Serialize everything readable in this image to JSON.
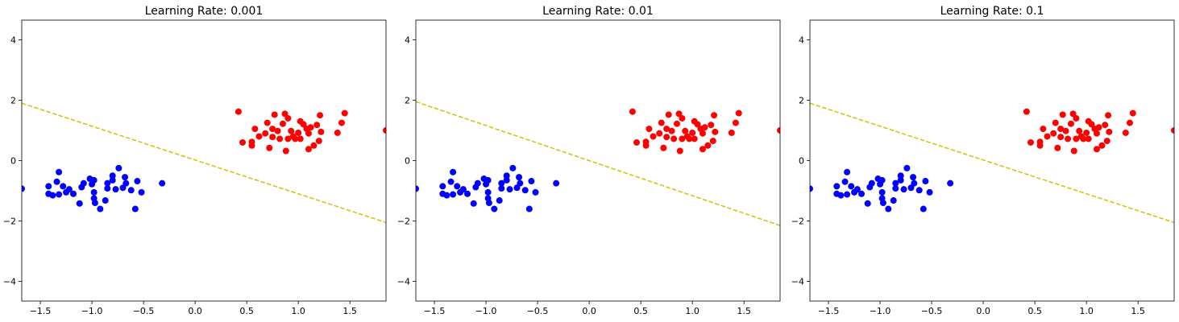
{
  "chart_data": [
    {
      "type": "scatter",
      "title": "Learning Rate: 0.001",
      "xlim": [
        -1.68,
        1.85
      ],
      "ylim": [
        -4.65,
        4.65
      ],
      "xticks": [
        -1.5,
        -1.0,
        -0.5,
        0.0,
        0.5,
        1.0,
        1.5
      ],
      "xtick_labels": [
        "−1.5",
        "−1.0",
        "−0.5",
        "0.0",
        "0.5",
        "1.0",
        "1.5"
      ],
      "yticks": [
        4,
        2,
        0,
        -2,
        -4
      ],
      "ytick_labels": [
        "4",
        "2",
        "0",
        "−2",
        "−4"
      ],
      "grid": false,
      "series": [
        {
          "color": "#0000ff",
          "points": [
            [
              -1.68,
              -0.93
            ],
            [
              -1.42,
              -0.85
            ],
            [
              -1.42,
              -1.1
            ],
            [
              -1.38,
              -1.15
            ],
            [
              -1.34,
              -0.7
            ],
            [
              -1.32,
              -0.38
            ],
            [
              -1.32,
              -1.12
            ],
            [
              -1.28,
              -0.85
            ],
            [
              -1.25,
              -1.05
            ],
            [
              -1.22,
              -0.95
            ],
            [
              -1.18,
              -1.1
            ],
            [
              -1.12,
              -1.42
            ],
            [
              -1.1,
              -0.88
            ],
            [
              -1.08,
              -0.75
            ],
            [
              -1.02,
              -0.6
            ],
            [
              -1.0,
              -0.78
            ],
            [
              -0.98,
              -0.65
            ],
            [
              -0.98,
              -1.05
            ],
            [
              -0.98,
              -1.25
            ],
            [
              -0.97,
              -1.4
            ],
            [
              -0.92,
              -1.6
            ],
            [
              -0.87,
              -1.32
            ],
            [
              -0.85,
              -0.75
            ],
            [
              -0.85,
              -0.92
            ],
            [
              -0.8,
              -0.65
            ],
            [
              -0.8,
              -0.5
            ],
            [
              -0.77,
              -0.95
            ],
            [
              -0.74,
              -0.25
            ],
            [
              -0.7,
              -0.9
            ],
            [
              -0.68,
              -0.55
            ],
            [
              -0.67,
              -0.75
            ],
            [
              -0.62,
              -0.98
            ],
            [
              -0.58,
              -1.6
            ],
            [
              -0.56,
              -0.68
            ],
            [
              -0.52,
              -1.05
            ],
            [
              -0.32,
              -0.75
            ]
          ]
        },
        {
          "color": "#ff0000",
          "points": [
            [
              0.42,
              1.62
            ],
            [
              0.46,
              0.6
            ],
            [
              0.55,
              0.5
            ],
            [
              0.55,
              0.62
            ],
            [
              0.58,
              1.05
            ],
            [
              0.62,
              0.8
            ],
            [
              0.68,
              0.9
            ],
            [
              0.7,
              1.25
            ],
            [
              0.72,
              0.42
            ],
            [
              0.75,
              0.78
            ],
            [
              0.75,
              1.05
            ],
            [
              0.77,
              1.52
            ],
            [
              0.8,
              0.98
            ],
            [
              0.82,
              0.72
            ],
            [
              0.85,
              1.22
            ],
            [
              0.87,
              1.55
            ],
            [
              0.88,
              0.32
            ],
            [
              0.9,
              1.4
            ],
            [
              0.9,
              0.72
            ],
            [
              0.93,
              0.98
            ],
            [
              0.95,
              0.8
            ],
            [
              0.97,
              0.72
            ],
            [
              1.0,
              0.92
            ],
            [
              1.02,
              1.3
            ],
            [
              1.02,
              0.72
            ],
            [
              1.05,
              1.2
            ],
            [
              1.08,
              1.05
            ],
            [
              1.1,
              0.38
            ],
            [
              1.1,
              0.9
            ],
            [
              1.12,
              1.1
            ],
            [
              1.15,
              0.5
            ],
            [
              1.18,
              1.18
            ],
            [
              1.2,
              0.65
            ],
            [
              1.21,
              1.5
            ],
            [
              1.22,
              0.95
            ],
            [
              1.38,
              0.92
            ],
            [
              1.42,
              1.25
            ],
            [
              1.45,
              1.57
            ],
            [
              1.85,
              1.0
            ]
          ]
        }
      ],
      "lines": [
        {
          "color": "#c8c800",
          "style": "dashed",
          "x": [
            -1.68,
            1.85
          ],
          "y": [
            1.9,
            -2.05
          ]
        }
      ]
    },
    {
      "type": "scatter",
      "title": "Learning Rate: 0.01",
      "xlim": [
        -1.68,
        1.85
      ],
      "ylim": [
        -4.65,
        4.65
      ],
      "xticks": [
        -1.5,
        -1.0,
        -0.5,
        0.0,
        0.5,
        1.0,
        1.5
      ],
      "xtick_labels": [
        "−1.5",
        "−1.0",
        "−0.5",
        "0.0",
        "0.5",
        "1.0",
        "1.5"
      ],
      "yticks": [
        4,
        2,
        0,
        -2,
        -4
      ],
      "ytick_labels": [
        "4",
        "2",
        "0",
        "−2",
        "−4"
      ],
      "grid": false,
      "series": [
        {
          "color": "#0000ff",
          "points": [
            [
              -1.68,
              -0.93
            ],
            [
              -1.42,
              -0.85
            ],
            [
              -1.42,
              -1.1
            ],
            [
              -1.38,
              -1.15
            ],
            [
              -1.34,
              -0.7
            ],
            [
              -1.32,
              -0.38
            ],
            [
              -1.32,
              -1.12
            ],
            [
              -1.28,
              -0.85
            ],
            [
              -1.25,
              -1.05
            ],
            [
              -1.22,
              -0.95
            ],
            [
              -1.18,
              -1.1
            ],
            [
              -1.12,
              -1.42
            ],
            [
              -1.1,
              -0.88
            ],
            [
              -1.08,
              -0.75
            ],
            [
              -1.02,
              -0.6
            ],
            [
              -1.0,
              -0.78
            ],
            [
              -0.98,
              -0.65
            ],
            [
              -0.98,
              -1.05
            ],
            [
              -0.98,
              -1.25
            ],
            [
              -0.97,
              -1.4
            ],
            [
              -0.92,
              -1.6
            ],
            [
              -0.87,
              -1.32
            ],
            [
              -0.85,
              -0.75
            ],
            [
              -0.85,
              -0.92
            ],
            [
              -0.8,
              -0.65
            ],
            [
              -0.8,
              -0.5
            ],
            [
              -0.77,
              -0.95
            ],
            [
              -0.74,
              -0.25
            ],
            [
              -0.7,
              -0.9
            ],
            [
              -0.68,
              -0.55
            ],
            [
              -0.67,
              -0.75
            ],
            [
              -0.62,
              -0.98
            ],
            [
              -0.58,
              -1.6
            ],
            [
              -0.56,
              -0.68
            ],
            [
              -0.52,
              -1.05
            ],
            [
              -0.32,
              -0.75
            ]
          ]
        },
        {
          "color": "#ff0000",
          "points": [
            [
              0.42,
              1.62
            ],
            [
              0.46,
              0.6
            ],
            [
              0.55,
              0.5
            ],
            [
              0.55,
              0.62
            ],
            [
              0.58,
              1.05
            ],
            [
              0.62,
              0.8
            ],
            [
              0.68,
              0.9
            ],
            [
              0.7,
              1.25
            ],
            [
              0.72,
              0.42
            ],
            [
              0.75,
              0.78
            ],
            [
              0.75,
              1.05
            ],
            [
              0.77,
              1.52
            ],
            [
              0.8,
              0.98
            ],
            [
              0.82,
              0.72
            ],
            [
              0.85,
              1.22
            ],
            [
              0.87,
              1.55
            ],
            [
              0.88,
              0.32
            ],
            [
              0.9,
              1.4
            ],
            [
              0.9,
              0.72
            ],
            [
              0.93,
              0.98
            ],
            [
              0.95,
              0.8
            ],
            [
              0.97,
              0.72
            ],
            [
              1.0,
              0.92
            ],
            [
              1.02,
              1.3
            ],
            [
              1.02,
              0.72
            ],
            [
              1.05,
              1.2
            ],
            [
              1.08,
              1.05
            ],
            [
              1.1,
              0.38
            ],
            [
              1.1,
              0.9
            ],
            [
              1.12,
              1.1
            ],
            [
              1.15,
              0.5
            ],
            [
              1.18,
              1.18
            ],
            [
              1.2,
              0.65
            ],
            [
              1.21,
              1.5
            ],
            [
              1.22,
              0.95
            ],
            [
              1.38,
              0.92
            ],
            [
              1.42,
              1.25
            ],
            [
              1.45,
              1.57
            ],
            [
              1.85,
              1.0
            ]
          ]
        }
      ],
      "lines": [
        {
          "color": "#c8c800",
          "style": "dashed",
          "x": [
            -1.68,
            1.85
          ],
          "y": [
            1.95,
            -2.15
          ]
        }
      ]
    },
    {
      "type": "scatter",
      "title": "Learning Rate: 0.1",
      "xlim": [
        -1.68,
        1.85
      ],
      "ylim": [
        -4.65,
        4.65
      ],
      "xticks": [
        -1.5,
        -1.0,
        -0.5,
        0.0,
        0.5,
        1.0,
        1.5
      ],
      "xtick_labels": [
        "−1.5",
        "−1.0",
        "−0.5",
        "0.0",
        "0.5",
        "1.0",
        "1.5"
      ],
      "yticks": [
        4,
        2,
        0,
        -2,
        -4
      ],
      "ytick_labels": [
        "4",
        "2",
        "0",
        "−2",
        "−4"
      ],
      "grid": false,
      "series": [
        {
          "color": "#0000ff",
          "points": [
            [
              -1.68,
              -0.93
            ],
            [
              -1.42,
              -0.85
            ],
            [
              -1.42,
              -1.1
            ],
            [
              -1.38,
              -1.15
            ],
            [
              -1.34,
              -0.7
            ],
            [
              -1.32,
              -0.38
            ],
            [
              -1.32,
              -1.12
            ],
            [
              -1.28,
              -0.85
            ],
            [
              -1.25,
              -1.05
            ],
            [
              -1.22,
              -0.95
            ],
            [
              -1.18,
              -1.1
            ],
            [
              -1.12,
              -1.42
            ],
            [
              -1.1,
              -0.88
            ],
            [
              -1.08,
              -0.75
            ],
            [
              -1.02,
              -0.6
            ],
            [
              -1.0,
              -0.78
            ],
            [
              -0.98,
              -0.65
            ],
            [
              -0.98,
              -1.05
            ],
            [
              -0.98,
              -1.25
            ],
            [
              -0.97,
              -1.4
            ],
            [
              -0.92,
              -1.6
            ],
            [
              -0.87,
              -1.32
            ],
            [
              -0.85,
              -0.75
            ],
            [
              -0.85,
              -0.92
            ],
            [
              -0.8,
              -0.65
            ],
            [
              -0.8,
              -0.5
            ],
            [
              -0.77,
              -0.95
            ],
            [
              -0.74,
              -0.25
            ],
            [
              -0.7,
              -0.9
            ],
            [
              -0.68,
              -0.55
            ],
            [
              -0.67,
              -0.75
            ],
            [
              -0.62,
              -0.98
            ],
            [
              -0.58,
              -1.6
            ],
            [
              -0.56,
              -0.68
            ],
            [
              -0.52,
              -1.05
            ],
            [
              -0.32,
              -0.75
            ]
          ]
        },
        {
          "color": "#ff0000",
          "points": [
            [
              0.42,
              1.62
            ],
            [
              0.46,
              0.6
            ],
            [
              0.55,
              0.5
            ],
            [
              0.55,
              0.62
            ],
            [
              0.58,
              1.05
            ],
            [
              0.62,
              0.8
            ],
            [
              0.68,
              0.9
            ],
            [
              0.7,
              1.25
            ],
            [
              0.72,
              0.42
            ],
            [
              0.75,
              0.78
            ],
            [
              0.75,
              1.05
            ],
            [
              0.77,
              1.52
            ],
            [
              0.8,
              0.98
            ],
            [
              0.82,
              0.72
            ],
            [
              0.85,
              1.22
            ],
            [
              0.87,
              1.55
            ],
            [
              0.88,
              0.32
            ],
            [
              0.9,
              1.4
            ],
            [
              0.9,
              0.72
            ],
            [
              0.93,
              0.98
            ],
            [
              0.95,
              0.8
            ],
            [
              0.97,
              0.72
            ],
            [
              1.0,
              0.92
            ],
            [
              1.02,
              1.3
            ],
            [
              1.02,
              0.72
            ],
            [
              1.05,
              1.2
            ],
            [
              1.08,
              1.05
            ],
            [
              1.1,
              0.38
            ],
            [
              1.1,
              0.9
            ],
            [
              1.12,
              1.1
            ],
            [
              1.15,
              0.5
            ],
            [
              1.18,
              1.18
            ],
            [
              1.2,
              0.65
            ],
            [
              1.21,
              1.5
            ],
            [
              1.22,
              0.95
            ],
            [
              1.38,
              0.92
            ],
            [
              1.42,
              1.25
            ],
            [
              1.45,
              1.57
            ],
            [
              1.85,
              1.0
            ]
          ]
        }
      ],
      "lines": [
        {
          "color": "#c8c800",
          "style": "dashed",
          "x": [
            -1.68,
            1.85
          ],
          "y": [
            1.9,
            -2.05
          ]
        }
      ]
    }
  ]
}
